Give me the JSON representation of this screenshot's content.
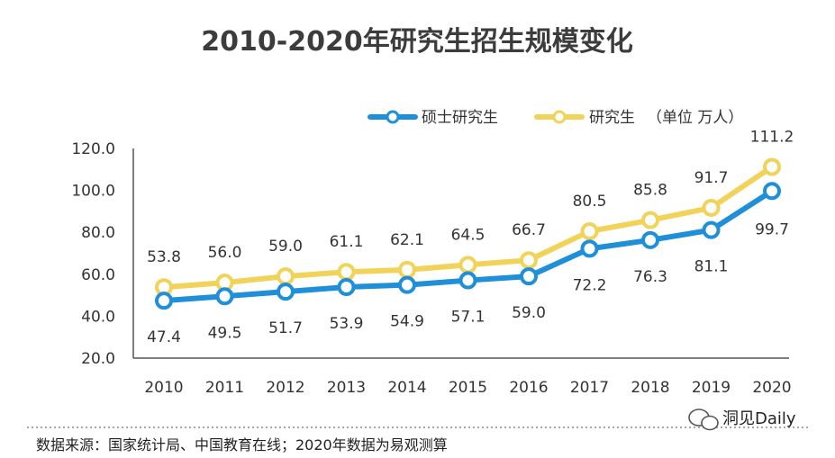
{
  "chart_data": {
    "type": "line",
    "title": "2010-2020年研究生招生规模变化",
    "categories": [
      "2010",
      "2011",
      "2012",
      "2013",
      "2014",
      "2015",
      "2016",
      "2017",
      "2018",
      "2019",
      "2020"
    ],
    "series": [
      {
        "name": "硕士研究生",
        "color": "#1e8fd8",
        "values": [
          47.4,
          49.5,
          51.7,
          53.9,
          54.9,
          57.1,
          59.0,
          72.2,
          76.3,
          81.1,
          99.7
        ]
      },
      {
        "name": "研究生",
        "color": "#f2d35a",
        "values": [
          53.8,
          56.0,
          59.0,
          61.1,
          62.1,
          64.5,
          66.7,
          80.5,
          85.8,
          91.7,
          111.2
        ]
      }
    ],
    "yticks": [
      "20.0",
      "40.0",
      "60.0",
      "80.0",
      "100.0",
      "120.0"
    ],
    "ylim": [
      20,
      120
    ],
    "unit_note": "（单位 万人）",
    "xlabel": "",
    "ylabel": ""
  },
  "footer": {
    "source": "数据来源：国家统计局、中国教育在线；2020年数据为易观测算",
    "wechat": "洞见Daily"
  },
  "colors": {
    "line_master": "#1e8fd8",
    "line_grad": "#f2d35a",
    "axis": "#555555"
  }
}
